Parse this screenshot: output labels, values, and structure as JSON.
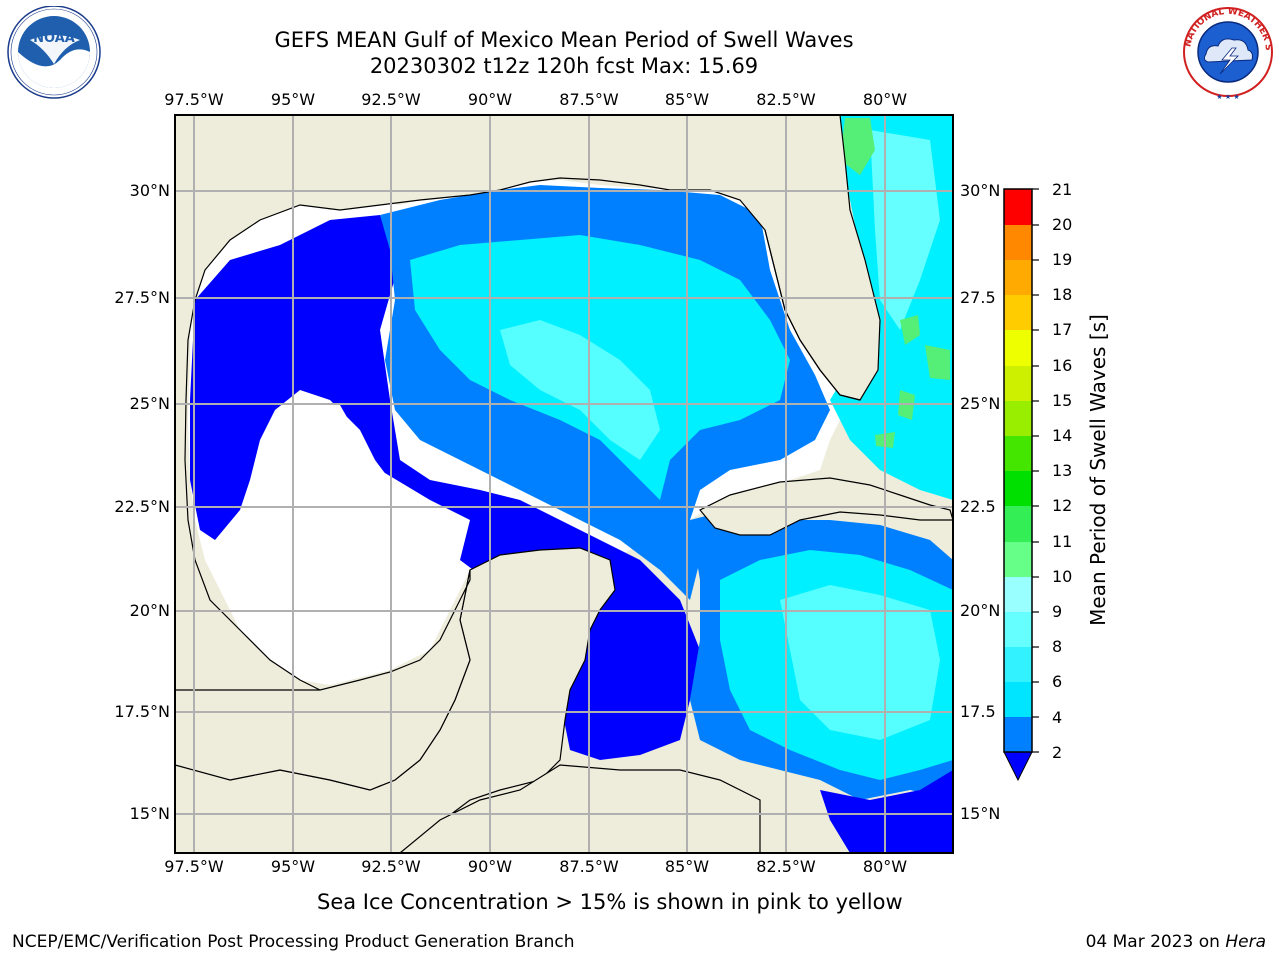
{
  "header": {
    "title_line1": "GEFS MEAN Gulf of Mexico Mean Period of Swell Waves",
    "title_line2": "20230302 t12z 120h fcst   Max: 15.69"
  },
  "logos": {
    "left": {
      "name": "NOAA",
      "ring_text": "NATIONAL OCEANIC AND ATMOSPHERIC ADMINISTRATION · U.S. DEPARTMENT OF COMMERCE"
    },
    "right": {
      "name": "NATIONAL WEATHER SERVICE"
    }
  },
  "map": {
    "lon_labels": [
      "97.5°W",
      "95°W",
      "92.5°W",
      "90°W",
      "87.5°W",
      "85°W",
      "82.5°W",
      "80°W"
    ],
    "lat_labels": [
      "30°N",
      "27.5°N",
      "25°N",
      "22.5°N",
      "20°N",
      "17.5°N",
      "15°N"
    ],
    "lat_labels_right": [
      "30°N",
      "27.5",
      "25°N",
      "22.5",
      "20°N",
      "17.5",
      "15°N"
    ],
    "land_color": "#eeeddc",
    "no_data_color": "#ffffff"
  },
  "colorbar": {
    "title": "Mean Period of Swell Waves [s]",
    "ticks": [
      "2",
      "4",
      "6",
      "8",
      "9",
      "10",
      "11",
      "12",
      "13",
      "14",
      "15",
      "16",
      "17",
      "18",
      "19",
      "20",
      "21"
    ],
    "colors": [
      "#0080ff",
      "#00e5ff",
      "#33f2ff",
      "#66ffff",
      "#99ffff",
      "#66ff88",
      "#33ee55",
      "#00e000",
      "#44e600",
      "#99ee00",
      "#ccf000",
      "#eeff00",
      "#ffee00",
      "#ffcc00",
      "#ffaa00",
      "#ff8800",
      "#ff5500",
      "#ff2a00",
      "#ff0000"
    ],
    "under_color": "#0000ff"
  },
  "footer": {
    "ice_note": "Sea Ice Concentration > 15% is shown in pink to yellow",
    "left": "NCEP/EMC/Verification Post Processing Product Generation Branch",
    "date": "04 Mar 2023 on ",
    "host": "Hera"
  }
}
